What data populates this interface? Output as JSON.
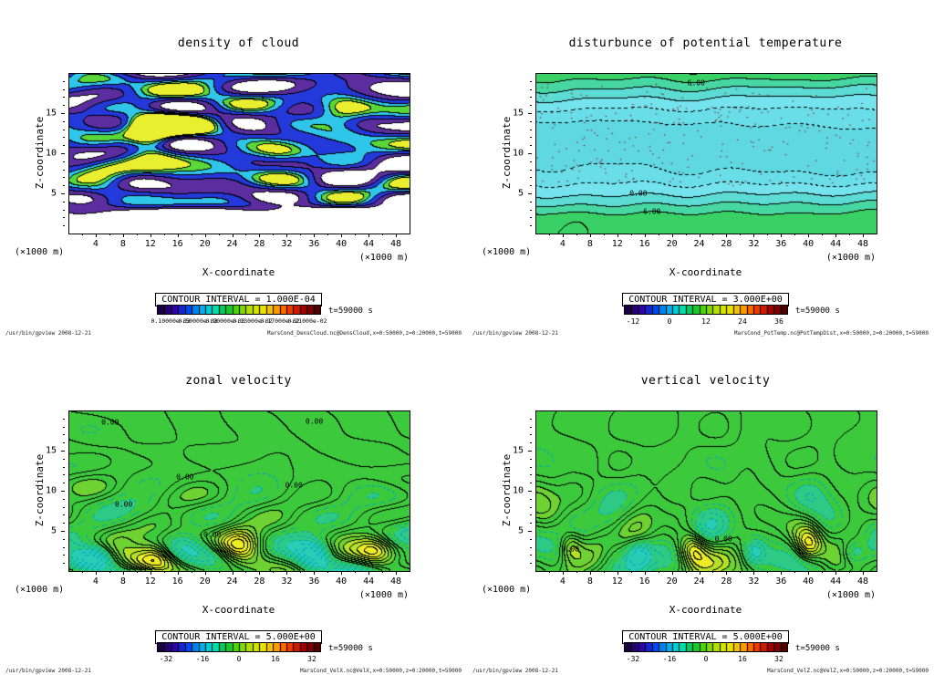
{
  "page": {
    "background": "#ffffff"
  },
  "colorbar_stops": [
    "#1a0040",
    "#3300aa",
    "#0040ee",
    "#00a8f0",
    "#00e0c8",
    "#00c832",
    "#66d800",
    "#c8e400",
    "#f0e000",
    "#ff9000",
    "#f03000",
    "#a00000",
    "#500000"
  ],
  "chart_data": [
    {
      "type": "contour",
      "title": "density of cloud",
      "xlabel": "X-coordinate",
      "ylabel": "Z-coordinate",
      "x_unit": "(×1000 m)",
      "y_unit": "(×1000 m)",
      "x_range": [
        0,
        50
      ],
      "y_range": [
        0,
        20
      ],
      "x_ticks": [
        4,
        8,
        12,
        16,
        20,
        24,
        28,
        32,
        36,
        40,
        44,
        48
      ],
      "y_ticks": [
        5,
        10,
        15
      ],
      "contour_interval_label": "CONTOUR INTERVAL = 1.000E-04",
      "contour_interval": 0.0001,
      "time_label": "t=59000 s",
      "colorbar": {
        "labels": [
          "0.10000e-03",
          "0.50000e-03",
          "0.90000e-03",
          "0.13000e-02",
          "0.17000e-02",
          "0.21000e-02"
        ],
        "smear": true
      },
      "annotations": [],
      "footer_left": "/usr/bin/gpview  2008-12-21",
      "footer_right": "MarsCond_DensCloud.nc@DensCloud,x=0:50000,z=0:20000,t=59000",
      "render": {
        "kind": "cloud",
        "seed": 11,
        "fx": 3.2,
        "fz": 6.5,
        "neg_dash": false,
        "fill": [
          {
            "ge": 0.82,
            "c": "#e9ef2e"
          },
          {
            "ge": 0.6,
            "c": "#5ad83a"
          },
          {
            "ge": 0.34,
            "c": "#2fc6ea"
          },
          {
            "ge": -0.02,
            "c": "#2339d9"
          },
          {
            "ge": -0.4,
            "c": "#5b2d9e"
          },
          {
            "ge": -99,
            "c": "none"
          }
        ],
        "bumps": [
          {
            "u": 0.24,
            "v": 0.38,
            "a": 1.9,
            "su": 0.07,
            "sv": 0.13
          },
          {
            "u": 0.33,
            "v": 0.3,
            "a": 1.0,
            "su": 0.1,
            "sv": 0.12
          },
          {
            "u": 0.62,
            "v": 0.52,
            "a": 0.8,
            "su": 0.09,
            "sv": 0.1
          },
          {
            "u": 0.8,
            "v": 0.25,
            "a": 0.9,
            "su": 0.08,
            "sv": 0.12
          },
          {
            "u": 0.1,
            "v": 0.65,
            "a": 0.7,
            "su": 0.08,
            "sv": 0.1
          }
        ]
      }
    },
    {
      "type": "contour",
      "title": "disturbunce of potential temperature",
      "xlabel": "X-coordinate",
      "ylabel": "Z-coordinate",
      "x_unit": "(×1000 m)",
      "y_unit": "(×1000 m)",
      "x_range": [
        0,
        50
      ],
      "y_range": [
        0,
        20
      ],
      "x_ticks": [
        4,
        8,
        12,
        16,
        20,
        24,
        28,
        32,
        36,
        40,
        44,
        48
      ],
      "y_ticks": [
        5,
        10,
        15
      ],
      "contour_interval_label": "CONTOUR INTERVAL = 3.000E+00",
      "contour_interval": 3,
      "time_label": "t=59000 s",
      "colorbar": {
        "values": [
          -12,
          0,
          12,
          24,
          36
        ],
        "min": -15,
        "max": 39
      },
      "annotations": [
        {
          "text": "6.00",
          "u": 0.47,
          "v": 0.055
        },
        {
          "text": "0.00",
          "u": 0.3,
          "v": 0.75
        },
        {
          "text": "6.00",
          "u": 0.34,
          "v": 0.86
        }
      ],
      "footer_left": "/usr/bin/gpview  2008-12-21",
      "footer_right": "MarsCond_PotTemp.nc@PotTempDist,x=0:50000,z=0:20000,t=59000",
      "render": {
        "kind": "bands",
        "seed": 7,
        "fx": 5,
        "fz": 1.8,
        "interval": 3,
        "neg_dash": true,
        "neg_color": "#000000",
        "speckles": 260,
        "fill": [
          {
            "ge": 6,
            "c": "#39d166"
          },
          {
            "ge": 3,
            "c": "#46d7a2"
          },
          {
            "ge": 0,
            "c": "#5cdcd4"
          },
          {
            "ge": -3,
            "c": "#74e3ee"
          },
          {
            "ge": -6,
            "c": "#69dde8"
          },
          {
            "ge": -99,
            "c": "#5fd8e2"
          }
        ],
        "bumps": []
      }
    },
    {
      "type": "contour",
      "title": "zonal velocity",
      "xlabel": "X-coordinate",
      "ylabel": "Z-coordinate",
      "x_unit": "(×1000 m)",
      "y_unit": "(×1000 m)",
      "x_range": [
        0,
        50
      ],
      "y_range": [
        0,
        20
      ],
      "x_ticks": [
        4,
        8,
        12,
        16,
        20,
        24,
        28,
        32,
        36,
        40,
        44,
        48
      ],
      "y_ticks": [
        5,
        10,
        15
      ],
      "contour_interval_label": "CONTOUR INTERVAL = 5.000E+00",
      "contour_interval": 5,
      "time_label": "t=59000 s",
      "colorbar": {
        "values": [
          -32,
          -16,
          0,
          16,
          32
        ],
        "min": -36,
        "max": 36
      },
      "annotations": [
        {
          "text": "0.00",
          "u": 0.12,
          "v": 0.07
        },
        {
          "text": "0.00",
          "u": 0.72,
          "v": 0.06
        },
        {
          "text": "0.00",
          "u": 0.34,
          "v": 0.41
        },
        {
          "text": "0.00",
          "u": 0.66,
          "v": 0.46
        },
        {
          "text": "0.00",
          "u": 0.16,
          "v": 0.58
        },
        {
          "text": "0.00",
          "u": 0.42,
          "v": 0.77
        }
      ],
      "footer_left": "/usr/bin/gpview  2008-12-21",
      "footer_right": "MarsCond_VelX.nc@VelX,x=0:50000,z=0:20000,t=59000",
      "render": {
        "kind": "flow",
        "seed": 5,
        "fx": 3.4,
        "fz": 4.6,
        "base": 5,
        "grow": 30,
        "pow": 1.6,
        "interval": 5,
        "neg_dash": true,
        "neg_color": "#00a9bd",
        "fill": [
          {
            "ge": 30,
            "c": "#eded26"
          },
          {
            "ge": 20,
            "c": "#b5e127"
          },
          {
            "ge": 10,
            "c": "#6fd233"
          },
          {
            "ge": -10,
            "c": "#3cc93c"
          },
          {
            "ge": -20,
            "c": "#2dc985"
          },
          {
            "ge": -99,
            "c": "#29cdb6"
          }
        ],
        "bumps": [
          {
            "u": 0.26,
            "v": 0.88,
            "a": 24,
            "su": 0.05,
            "sv": 0.1
          },
          {
            "u": 0.5,
            "v": 0.85,
            "a": 30,
            "su": 0.06,
            "sv": 0.11
          },
          {
            "u": 0.72,
            "v": 0.9,
            "a": -26,
            "su": 0.05,
            "sv": 0.09
          },
          {
            "u": 0.9,
            "v": 0.86,
            "a": 18,
            "su": 0.05,
            "sv": 0.09
          },
          {
            "u": 0.08,
            "v": 0.9,
            "a": -18,
            "su": 0.05,
            "sv": 0.08
          }
        ]
      }
    },
    {
      "type": "contour",
      "title": "vertical velocity",
      "xlabel": "X-coordinate",
      "ylabel": "Z-coordinate",
      "x_unit": "(×1000 m)",
      "y_unit": "(×1000 m)",
      "x_range": [
        0,
        50
      ],
      "y_range": [
        0,
        20
      ],
      "x_ticks": [
        4,
        8,
        12,
        16,
        20,
        24,
        28,
        32,
        36,
        40,
        44,
        48
      ],
      "y_ticks": [
        5,
        10,
        15
      ],
      "contour_interval_label": "CONTOUR INTERVAL = 5.000E+00",
      "contour_interval": 5,
      "time_label": "t=59000 s",
      "colorbar": {
        "values": [
          -32,
          -16,
          0,
          16,
          32
        ],
        "min": -36,
        "max": 36
      },
      "annotations": [
        {
          "text": "0.00",
          "u": 0.1,
          "v": 0.86
        },
        {
          "text": "0.00",
          "u": 0.55,
          "v": 0.8
        }
      ],
      "footer_left": "/usr/bin/gpview  2008-12-21",
      "footer_right": "MarsCond_VelZ.nc@VelZ,x=0:50000,z=0:20000,t=59000",
      "render": {
        "kind": "flow",
        "seed": 17,
        "fx": 8.5,
        "fz": 3.4,
        "base": 5,
        "grow": 26,
        "pow": 1.25,
        "interval": 5,
        "neg_dash": true,
        "neg_color": "#00a9bd",
        "fill": [
          {
            "ge": 30,
            "c": "#eded26"
          },
          {
            "ge": 20,
            "c": "#b5e127"
          },
          {
            "ge": 10,
            "c": "#6fd233"
          },
          {
            "ge": -10,
            "c": "#3cc93c"
          },
          {
            "ge": -20,
            "c": "#2dc985"
          },
          {
            "ge": -99,
            "c": "#29cdb6"
          }
        ],
        "bumps": [
          {
            "u": 0.1,
            "v": 0.84,
            "a": 26,
            "su": 0.035,
            "sv": 0.1
          },
          {
            "u": 0.3,
            "v": 0.88,
            "a": -24,
            "su": 0.04,
            "sv": 0.09
          },
          {
            "u": 0.46,
            "v": 0.86,
            "a": 28,
            "su": 0.04,
            "sv": 0.1
          },
          {
            "u": 0.64,
            "v": 0.88,
            "a": -22,
            "su": 0.035,
            "sv": 0.09
          },
          {
            "u": 0.8,
            "v": 0.84,
            "a": 30,
            "su": 0.04,
            "sv": 0.11
          },
          {
            "u": 0.93,
            "v": 0.88,
            "a": -20,
            "su": 0.035,
            "sv": 0.08
          }
        ]
      }
    }
  ]
}
